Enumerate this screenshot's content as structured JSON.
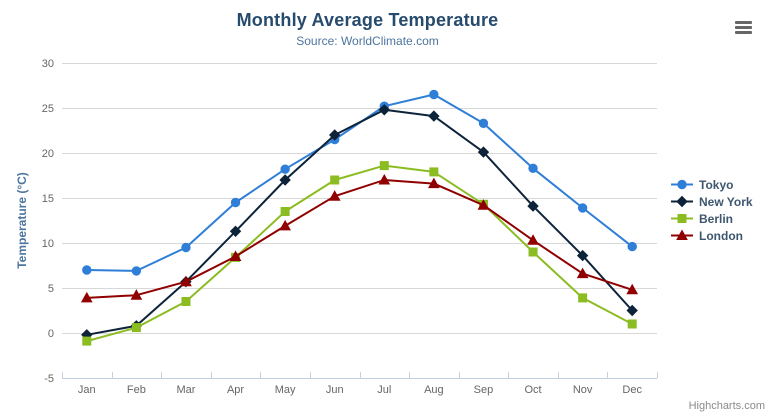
{
  "chart_data": {
    "type": "line",
    "title": "Monthly Average Temperature",
    "subtitle": "Source: WorldClimate.com",
    "categories": [
      "Jan",
      "Feb",
      "Mar",
      "Apr",
      "May",
      "Jun",
      "Jul",
      "Aug",
      "Sep",
      "Oct",
      "Nov",
      "Dec"
    ],
    "xlabel": "",
    "ylabel": "Temperature (°C)",
    "ylim": [
      -5,
      30
    ],
    "yticks": [
      -5,
      0,
      5,
      10,
      15,
      20,
      25,
      30
    ],
    "grid": true,
    "legend_position": "right",
    "series": [
      {
        "name": "Tokyo",
        "color": "#2f7ed8",
        "marker": "circle",
        "values": [
          7.0,
          6.9,
          9.5,
          14.5,
          18.2,
          21.5,
          25.2,
          26.5,
          23.3,
          18.3,
          13.9,
          9.6
        ]
      },
      {
        "name": "New York",
        "color": "#0d233a",
        "marker": "diamond",
        "values": [
          -0.2,
          0.8,
          5.7,
          11.3,
          17.0,
          22.0,
          24.8,
          24.1,
          20.1,
          14.1,
          8.6,
          2.5
        ]
      },
      {
        "name": "Berlin",
        "color": "#8bbc21",
        "marker": "square",
        "values": [
          -0.9,
          0.6,
          3.5,
          8.4,
          13.5,
          17.0,
          18.6,
          17.9,
          14.3,
          9.0,
          3.9,
          1.0
        ]
      },
      {
        "name": "London",
        "color": "#910000",
        "marker": "triangle",
        "values": [
          3.9,
          4.2,
          5.7,
          8.5,
          11.9,
          15.2,
          17.0,
          16.6,
          14.2,
          10.3,
          6.6,
          4.8
        ]
      }
    ]
  },
  "credits": "Highcharts.com",
  "icons": {
    "context_menu": "hamburger-icon"
  },
  "colors": {
    "title": "#274b6d",
    "subtitle": "#4d759e",
    "axis_label": "#666666",
    "axis_title": "#4d759e",
    "gridline": "#d8d8d8",
    "axis_line": "#c0d0e0",
    "legend_text": "#3e576f",
    "credits": "#8a8a8a",
    "menu_icon": "#666666",
    "background": "#ffffff"
  }
}
